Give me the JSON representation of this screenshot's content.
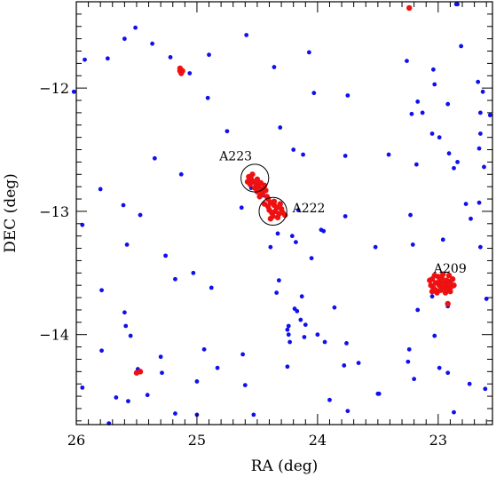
{
  "chart_data": {
    "type": "scatter",
    "title": "",
    "xlabel": "RA (deg)",
    "ylabel": "DEC (deg)",
    "xlim": [
      26.0,
      22.55
    ],
    "ylim": [
      -14.73,
      -11.3
    ],
    "x_ticks": [
      26,
      25,
      24,
      23
    ],
    "x_tick_labels": [
      "26",
      "25",
      "24",
      "23"
    ],
    "y_ticks": [
      -12,
      -13,
      -14
    ],
    "y_tick_labels": [
      "−12",
      "−13",
      "−14"
    ],
    "grid": false,
    "legend": "none",
    "colors": {
      "field": "#1010ee",
      "member": "#ee1111"
    },
    "annotations": [
      {
        "label": "A223",
        "ra": 24.52,
        "dec": -12.73,
        "radius_deg": 0.115
      },
      {
        "label": "A222",
        "ra": 24.37,
        "dec": -13.0,
        "radius_deg": 0.115
      },
      {
        "label": "A209",
        "ra": 22.97,
        "dec": -13.59,
        "radius_deg": 0
      }
    ],
    "series": [
      {
        "color": "#1010ee",
        "points": [
          [
            25.93,
            -11.77
          ],
          [
            25.51,
            -11.51
          ],
          [
            25.6,
            -11.6
          ],
          [
            25.37,
            -11.64
          ],
          [
            25.74,
            -11.76
          ],
          [
            25.22,
            -11.75
          ],
          [
            25.06,
            -11.88
          ],
          [
            24.9,
            -11.73
          ],
          [
            24.59,
            -11.57
          ],
          [
            24.36,
            -11.83
          ],
          [
            24.07,
            -11.71
          ],
          [
            24.03,
            -12.04
          ],
          [
            23.75,
            -12.06
          ],
          [
            23.26,
            -11.78
          ],
          [
            22.85,
            -11.32
          ],
          [
            22.84,
            -11.32
          ],
          [
            22.81,
            -11.66
          ],
          [
            23.04,
            -11.85
          ],
          [
            23.03,
            -11.97
          ],
          [
            22.67,
            -11.95
          ],
          [
            22.63,
            -12.03
          ],
          [
            22.65,
            -12.2
          ],
          [
            22.57,
            -12.22
          ],
          [
            22.92,
            -12.13
          ],
          [
            23.17,
            -12.11
          ],
          [
            23.13,
            -12.2
          ],
          [
            23.22,
            -12.21
          ],
          [
            23.05,
            -12.37
          ],
          [
            22.99,
            -12.4
          ],
          [
            22.91,
            -12.53
          ],
          [
            22.87,
            -12.65
          ],
          [
            22.84,
            -12.6
          ],
          [
            22.65,
            -12.37
          ],
          [
            22.66,
            -12.49
          ],
          [
            22.62,
            -12.64
          ],
          [
            26.02,
            -12.03
          ],
          [
            24.91,
            -12.08
          ],
          [
            24.75,
            -12.35
          ],
          [
            24.31,
            -12.32
          ],
          [
            24.2,
            -12.5
          ],
          [
            24.12,
            -12.54
          ],
          [
            23.77,
            -12.55
          ],
          [
            23.41,
            -12.54
          ],
          [
            23.18,
            -12.62
          ],
          [
            25.35,
            -12.57
          ],
          [
            25.13,
            -12.7
          ],
          [
            24.55,
            -12.81
          ],
          [
            24.45,
            -12.87
          ],
          [
            24.63,
            -12.97
          ],
          [
            25.8,
            -12.82
          ],
          [
            25.61,
            -12.95
          ],
          [
            25.47,
            -13.03
          ],
          [
            25.95,
            -13.11
          ],
          [
            25.58,
            -13.27
          ],
          [
            25.26,
            -13.36
          ],
          [
            25.18,
            -13.55
          ],
          [
            25.03,
            -13.5
          ],
          [
            24.88,
            -13.62
          ],
          [
            24.16,
            -12.99
          ],
          [
            24.33,
            -13.18
          ],
          [
            24.21,
            -13.2
          ],
          [
            24.39,
            -13.29
          ],
          [
            24.18,
            -13.25
          ],
          [
            24.32,
            -13.56
          ],
          [
            23.97,
            -13.15
          ],
          [
            23.95,
            -13.16
          ],
          [
            23.77,
            -13.04
          ],
          [
            24.05,
            -13.38
          ],
          [
            24.34,
            -13.66
          ],
          [
            24.13,
            -13.69
          ],
          [
            23.52,
            -13.29
          ],
          [
            23.23,
            -13.03
          ],
          [
            23.21,
            -13.27
          ],
          [
            22.96,
            -13.23
          ],
          [
            22.73,
            -13.06
          ],
          [
            22.77,
            -12.94
          ],
          [
            22.66,
            -12.93
          ],
          [
            22.65,
            -13.29
          ],
          [
            22.6,
            -13.71
          ],
          [
            23.17,
            -13.8
          ],
          [
            23.05,
            -13.69
          ],
          [
            22.92,
            -13.77
          ],
          [
            23.03,
            -14.01
          ],
          [
            24.19,
            -13.79
          ],
          [
            24.14,
            -13.88
          ],
          [
            24.17,
            -13.81
          ],
          [
            24.24,
            -13.93
          ],
          [
            24.25,
            -13.96
          ],
          [
            24.24,
            -14.0
          ],
          [
            24.23,
            -14.06
          ],
          [
            24.1,
            -13.92
          ],
          [
            24.11,
            -14.02
          ],
          [
            24.0,
            -14.0
          ],
          [
            23.86,
            -13.78
          ],
          [
            23.94,
            -14.06
          ],
          [
            23.76,
            -14.07
          ],
          [
            23.66,
            -14.23
          ],
          [
            23.49,
            -14.48
          ],
          [
            23.5,
            -14.48
          ],
          [
            23.78,
            -14.25
          ],
          [
            24.25,
            -14.26
          ],
          [
            23.9,
            -14.53
          ],
          [
            23.75,
            -14.62
          ],
          [
            23.24,
            -14.12
          ],
          [
            23.25,
            -14.22
          ],
          [
            23.2,
            -14.36
          ],
          [
            22.99,
            -14.27
          ],
          [
            22.92,
            -14.31
          ],
          [
            22.87,
            -14.63
          ],
          [
            22.74,
            -14.4
          ],
          [
            22.61,
            -14.44
          ],
          [
            25.95,
            -14.43
          ],
          [
            25.79,
            -14.13
          ],
          [
            25.6,
            -13.82
          ],
          [
            25.59,
            -13.93
          ],
          [
            25.55,
            -14.01
          ],
          [
            25.79,
            -13.64
          ],
          [
            25.49,
            -14.28
          ],
          [
            25.49,
            -14.3
          ],
          [
            25.67,
            -14.51
          ],
          [
            25.57,
            -14.54
          ],
          [
            25.41,
            -14.49
          ],
          [
            25.3,
            -14.18
          ],
          [
            25.29,
            -14.31
          ],
          [
            25.18,
            -14.64
          ],
          [
            25.0,
            -14.38
          ],
          [
            25.0,
            -14.65
          ],
          [
            24.94,
            -14.12
          ],
          [
            24.83,
            -14.27
          ],
          [
            24.62,
            -14.16
          ],
          [
            24.6,
            -14.41
          ],
          [
            24.53,
            -14.65
          ],
          [
            25.73,
            -14.72
          ]
        ]
      },
      {
        "color": "#ee1111",
        "points": [
          [
            23.24,
            -11.35
          ],
          [
            25.14,
            -11.86
          ],
          [
            25.13,
            -11.88
          ],
          [
            25.14,
            -11.84
          ],
          [
            25.12,
            -11.86
          ],
          [
            25.5,
            -14.31
          ],
          [
            25.47,
            -14.3
          ],
          [
            22.92,
            -13.75
          ],
          [
            24.57,
            -12.72
          ],
          [
            24.55,
            -12.74
          ],
          [
            24.53,
            -12.76
          ],
          [
            24.51,
            -12.78
          ],
          [
            24.49,
            -12.8
          ],
          [
            24.47,
            -12.82
          ],
          [
            24.45,
            -12.84
          ],
          [
            24.56,
            -12.78
          ],
          [
            24.52,
            -12.81
          ],
          [
            24.5,
            -12.74
          ],
          [
            24.47,
            -12.77
          ],
          [
            24.46,
            -12.86
          ],
          [
            24.43,
            -12.83
          ],
          [
            24.48,
            -12.88
          ],
          [
            24.44,
            -12.79
          ],
          [
            24.54,
            -12.7
          ],
          [
            24.58,
            -12.76
          ],
          [
            24.5,
            -12.84
          ],
          [
            24.42,
            -12.88
          ],
          [
            24.41,
            -12.9
          ],
          [
            24.39,
            -12.93
          ],
          [
            24.36,
            -12.95
          ],
          [
            24.34,
            -12.97
          ],
          [
            24.4,
            -12.99
          ],
          [
            24.38,
            -13.01
          ],
          [
            24.35,
            -13.0
          ],
          [
            24.32,
            -13.02
          ],
          [
            24.3,
            -12.98
          ],
          [
            24.37,
            -13.04
          ],
          [
            24.33,
            -13.05
          ],
          [
            24.41,
            -12.96
          ],
          [
            24.29,
            -13.01
          ],
          [
            24.36,
            -12.92
          ],
          [
            24.31,
            -12.94
          ],
          [
            24.44,
            -12.94
          ],
          [
            24.27,
            -13.03
          ],
          [
            24.39,
            -13.06
          ],
          [
            23.05,
            -13.55
          ],
          [
            23.02,
            -13.58
          ],
          [
            22.99,
            -13.6
          ],
          [
            22.96,
            -13.62
          ],
          [
            22.93,
            -13.6
          ],
          [
            22.9,
            -13.57
          ],
          [
            23.04,
            -13.62
          ],
          [
            23.01,
            -13.66
          ],
          [
            22.98,
            -13.64
          ],
          [
            22.95,
            -13.58
          ],
          [
            22.92,
            -13.63
          ],
          [
            22.89,
            -13.61
          ],
          [
            23.03,
            -13.52
          ],
          [
            22.97,
            -13.54
          ],
          [
            22.91,
            -13.52
          ],
          [
            23.06,
            -13.6
          ],
          [
            22.88,
            -13.55
          ],
          [
            23.0,
            -13.53
          ],
          [
            22.94,
            -13.66
          ],
          [
            23.07,
            -13.56
          ],
          [
            22.9,
            -13.65
          ],
          [
            22.96,
            -13.51
          ],
          [
            23.02,
            -13.64
          ],
          [
            22.93,
            -13.56
          ],
          [
            22.99,
            -13.57
          ],
          [
            23.05,
            -13.65
          ],
          [
            22.87,
            -13.6
          ]
        ]
      }
    ]
  }
}
